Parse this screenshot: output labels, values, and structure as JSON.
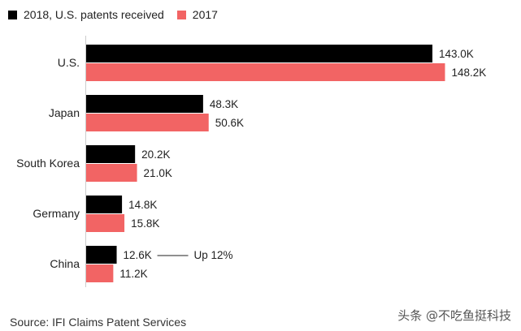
{
  "chart_data": {
    "type": "bar",
    "orientation": "horizontal",
    "categories": [
      "U.S.",
      "Japan",
      "South Korea",
      "Germany",
      "China"
    ],
    "series": [
      {
        "name": "2018, U.S. patents received",
        "color": "#000000",
        "values": [
          143.0,
          48.3,
          20.2,
          14.8,
          12.6
        ],
        "labels": [
          "143.0K",
          "48.3K",
          "20.2K",
          "14.8K",
          "12.6K"
        ]
      },
      {
        "name": "2017",
        "color": "#f26464",
        "values": [
          148.2,
          50.6,
          21.0,
          15.8,
          11.2
        ],
        "labels": [
          "148.2K",
          "50.6K",
          "21.0K",
          "15.8K",
          "11.2K"
        ]
      }
    ],
    "annotations": [
      {
        "category": "China",
        "series": 0,
        "text": "Up 12%"
      }
    ],
    "xlim": [
      0,
      150
    ],
    "grid": false,
    "legend_position": "top-left"
  },
  "source": "Source: IFI Claims Patent Services",
  "watermark": "头条 @不吃鱼挺科技"
}
